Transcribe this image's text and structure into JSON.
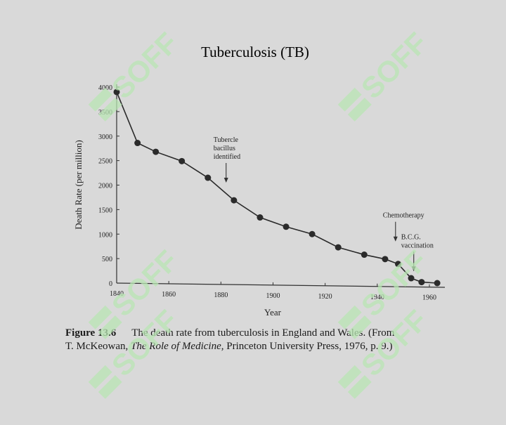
{
  "slide": {
    "title": "Tuberculosis (TB)"
  },
  "watermark": {
    "text": "SOFF",
    "color": "#b9e6b4"
  },
  "caption": {
    "figure_label": "Figure 13.6",
    "text_line1": "The death rate from tuberculosis in England and Wales. (From",
    "line2_prefix": "T. McKeowan, ",
    "line2_book": "The Role of Medicine",
    "line2_suffix": ", Princeton University Press, 1976, p. 9.)"
  },
  "chart_data": {
    "type": "line",
    "title": "",
    "xlabel": "Year",
    "ylabel": "Death Rate (per million)",
    "xlim": [
      1840,
      1966
    ],
    "ylim": [
      0,
      4000
    ],
    "xticks": [
      1840,
      1860,
      1880,
      1900,
      1920,
      1940,
      1960
    ],
    "yticks": [
      0,
      500,
      1000,
      1500,
      2000,
      2500,
      3000,
      3500,
      4000
    ],
    "grid": false,
    "series": [
      {
        "x": [
          1840,
          1848,
          1855,
          1865,
          1875,
          1885,
          1895,
          1905,
          1915,
          1925,
          1935,
          1943,
          1948,
          1953,
          1957,
          1963
        ],
        "y": [
          3900,
          2860,
          2680,
          2490,
          2150,
          1690,
          1340,
          1150,
          1000,
          730,
          580,
          490,
          390,
          100,
          20,
          0
        ]
      }
    ],
    "annotations": [
      {
        "lines": [
          "Tubercle",
          "bacillus",
          "identified"
        ],
        "x": 1882,
        "y": 2050
      },
      {
        "lines": [
          "Chemotherapy"
        ],
        "x": 1947,
        "y": 850
      },
      {
        "lines": [
          "B.C.G.",
          "vaccination"
        ],
        "x": 1954,
        "y": 240
      }
    ]
  }
}
